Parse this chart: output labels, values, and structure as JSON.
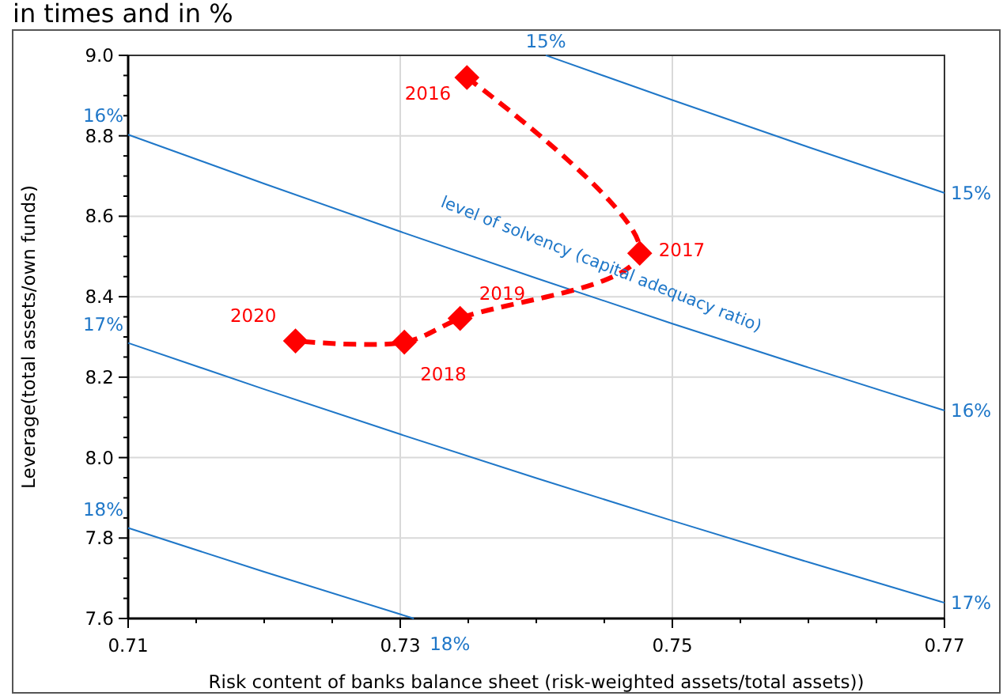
{
  "chart_data": {
    "type": "line",
    "title": "in times and in %",
    "xlabel": "Risk content of banks balance sheet (risk-weighted assets/total assets))",
    "ylabel": "Leverage(total assets/own funds)",
    "xlim": [
      0.71,
      0.77
    ],
    "xticks": [
      0.71,
      0.73,
      0.75,
      0.77
    ],
    "ylim": [
      7.6,
      9.0
    ],
    "yticks": [
      {
        "value": 7.6,
        "label": "7.6"
      },
      {
        "value": 7.8,
        "label": "7.8"
      },
      {
        "value": 8.0,
        "label": "8.0"
      },
      {
        "value": 8.2,
        "label": "8.2"
      },
      {
        "value": 8.4,
        "label": "8.4"
      },
      {
        "value": 8.6,
        "label": "8.6"
      },
      {
        "value": 8.8,
        "label": "8.8"
      },
      {
        "value": 9.0,
        "label": "9.0"
      }
    ],
    "grid": true,
    "series": [
      {
        "color": "#ff0000",
        "marker": "diamond",
        "line_style": "dashed",
        "x": [
          0.7349,
          0.7476,
          0.7344,
          0.7303,
          0.7223
        ],
        "values": [
          8.945,
          8.508,
          8.346,
          8.287,
          8.29
        ]
      },
      {
        "color": "#1f77c8",
        "marker": "none",
        "line_style": "solid",
        "x": [
          0.7407,
          0.75,
          0.76,
          0.77
        ],
        "values": [
          9.0,
          8.889,
          8.772,
          8.658
        ]
      },
      {
        "color": "#1f77c8",
        "marker": "none",
        "line_style": "solid",
        "x": [
          0.71,
          0.72,
          0.73,
          0.74,
          0.75,
          0.76,
          0.77
        ],
        "values": [
          8.803,
          8.681,
          8.562,
          8.446,
          8.333,
          8.224,
          8.117
        ]
      },
      {
        "color": "#1f77c8",
        "marker": "none",
        "line_style": "solid",
        "x": [
          0.71,
          0.72,
          0.73,
          0.74,
          0.75,
          0.76,
          0.77
        ],
        "values": [
          8.285,
          8.17,
          8.058,
          7.949,
          7.843,
          7.74,
          7.639
        ]
      },
      {
        "color": "#1f77c8",
        "marker": "none",
        "line_style": "solid",
        "x": [
          0.71,
          0.72,
          0.731
        ],
        "values": [
          7.825,
          7.716,
          7.6
        ]
      }
    ],
    "annotations": [
      {
        "text": "2016",
        "x": 0.7349,
        "y": 8.945
      },
      {
        "text": "2017",
        "x": 0.7476,
        "y": 8.508
      },
      {
        "text": "2019",
        "x": 0.7344,
        "y": 8.346
      },
      {
        "text": "2018",
        "x": 0.7303,
        "y": 8.287
      },
      {
        "text": "2020",
        "x": 0.7223,
        "y": 8.29
      },
      {
        "text": "15%",
        "x": 0.7407,
        "y": 9.0
      },
      {
        "text": "15%",
        "x": 0.77,
        "y": 8.658
      },
      {
        "text": "16%",
        "x": 0.71,
        "y": 8.803
      },
      {
        "text": "16%",
        "x": 0.77,
        "y": 8.117
      },
      {
        "text": "17%",
        "x": 0.71,
        "y": 8.285
      },
      {
        "text": "17%",
        "x": 0.77,
        "y": 7.639
      },
      {
        "text": "18%",
        "x": 0.71,
        "y": 7.825
      },
      {
        "text": "18%",
        "x": 0.731,
        "y": 7.6
      },
      "level of solvency (capital adequacy ratio)"
    ]
  }
}
